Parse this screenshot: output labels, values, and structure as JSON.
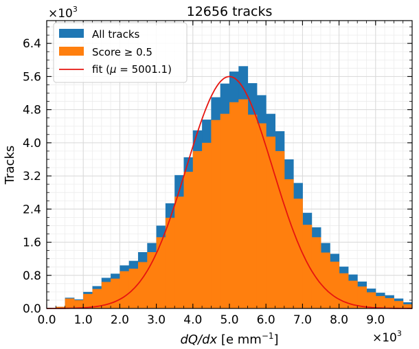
{
  "chart_data": {
    "type": "bar",
    "title": "12656 tracks",
    "xlabel_prefix": "dQ/dx",
    "xlabel_suffix": " [e mm",
    "xlabel_exp": "−1",
    "xlabel_close": "]",
    "ylabel": "Tracks",
    "x_multiplier": "×10",
    "y_multiplier": "×10",
    "multiplier_exp": "3",
    "xlim": [
      0,
      10000
    ],
    "ylim": [
      0,
      6950
    ],
    "xticks": [
      0,
      1000,
      2000,
      3000,
      4000,
      5000,
      6000,
      7000,
      8000,
      9000
    ],
    "xtick_labels": [
      "0.0",
      "1.0",
      "2.0",
      "3.0",
      "4.0",
      "5.0",
      "6.0",
      "7.0",
      "8.0",
      "9.0"
    ],
    "yticks": [
      0,
      800,
      1600,
      2400,
      3200,
      4000,
      4800,
      5600,
      6400
    ],
    "ytick_labels": [
      "0.0",
      "0.8",
      "1.6",
      "2.4",
      "3.2",
      "4.0",
      "4.8",
      "5.6",
      "6.4"
    ],
    "bin_edges": [
      0,
      250,
      500,
      750,
      1000,
      1250,
      1500,
      1750,
      2000,
      2250,
      2500,
      2750,
      3000,
      3250,
      3500,
      3750,
      4000,
      4250,
      4500,
      4750,
      5000,
      5250,
      5500,
      5750,
      6000,
      6250,
      6500,
      6750,
      7000,
      7250,
      7500,
      7750,
      8000,
      8250,
      8500,
      8750,
      9000,
      9250,
      9500,
      9750,
      10000
    ],
    "series": [
      {
        "name": "All tracks",
        "color": "#1f77b4",
        "values": [
          10,
          40,
          260,
          220,
          400,
          540,
          740,
          840,
          1040,
          1150,
          1360,
          1580,
          2000,
          2540,
          3220,
          3650,
          4300,
          4560,
          5100,
          5430,
          5720,
          5850,
          5440,
          5150,
          4700,
          4280,
          3600,
          3030,
          2310,
          1960,
          1580,
          1320,
          1010,
          820,
          650,
          480,
          380,
          320,
          240,
          150
        ]
      },
      {
        "name": "Score ≥ 0.5",
        "color": "#ff7f0e",
        "values": [
          10,
          40,
          240,
          200,
          350,
          470,
          640,
          720,
          900,
          960,
          1120,
          1360,
          1720,
          2190,
          2700,
          3300,
          3800,
          4000,
          4550,
          4700,
          4980,
          5050,
          4680,
          4470,
          4150,
          3800,
          3120,
          2650,
          2020,
          1720,
          1350,
          1130,
          850,
          670,
          530,
          390,
          300,
          250,
          180,
          100
        ]
      }
    ],
    "fit": {
      "name": "fit",
      "label_prefix": "fit (",
      "mu_symbol": "μ",
      "mu_value": "5001.1",
      "label_suffix": ")",
      "color": "#e6140f",
      "mu": 5001.1,
      "sigma": 1180,
      "amplitude": 5600
    },
    "legend_position": "upper-left",
    "grid": true
  }
}
